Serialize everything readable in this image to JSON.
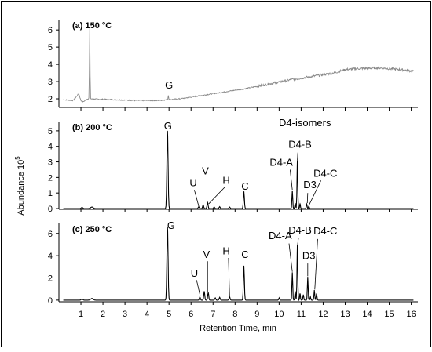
{
  "chart_data": {
    "type": "line",
    "ylabel": "Abundance 10",
    "ylabel_exponent": "5",
    "xlabel": "Retention Time, min",
    "xlim": [
      0,
      16.3
    ],
    "x_ticks": [
      "1",
      "2",
      "3",
      "4",
      "5",
      "6",
      "7",
      "8",
      "9",
      "10",
      "11",
      "12",
      "13",
      "14",
      "15",
      "16"
    ],
    "panels": [
      {
        "title": "(a) 150 °C",
        "ylim": [
          1.5,
          6.6
        ],
        "y_ticks": [
          "2",
          "3",
          "4",
          "5",
          "6"
        ],
        "line_color": "#888888",
        "peak_labels": [
          {
            "text": "G",
            "x": 5.0,
            "y": 2.6
          }
        ],
        "baseline": [
          [
            0.2,
            1.95
          ],
          [
            0.65,
            1.9
          ],
          [
            0.9,
            2.3
          ],
          [
            1.0,
            1.9
          ],
          [
            1.1,
            1.82
          ],
          [
            1.3,
            2.0
          ],
          [
            1.7,
            1.98
          ],
          [
            2.5,
            1.95
          ],
          [
            3.5,
            1.9
          ],
          [
            4.5,
            1.9
          ],
          [
            5.5,
            2.0
          ],
          [
            6.5,
            2.2
          ],
          [
            7.5,
            2.4
          ],
          [
            8.5,
            2.6
          ],
          [
            9.5,
            2.85
          ],
          [
            10.5,
            3.1
          ],
          [
            11.5,
            3.3
          ],
          [
            12.5,
            3.5
          ],
          [
            13.0,
            3.7
          ],
          [
            13.5,
            3.75
          ],
          [
            14.5,
            3.8
          ],
          [
            15.5,
            3.7
          ],
          [
            16.1,
            3.6
          ]
        ],
        "spikes": [
          {
            "x": 1.4,
            "height": 4.1,
            "width": 0.03
          },
          {
            "x": 4.97,
            "height": 0.25,
            "width": 0.03
          }
        ]
      },
      {
        "title": "(b) 200 °C",
        "ylim": [
          -0.05,
          5.6
        ],
        "y_ticks": [
          "0",
          "1",
          "2",
          "3",
          "4",
          "5"
        ],
        "line_color": "#000000",
        "header_text": "D4-isomers",
        "peak_labels": [
          {
            "text": "G",
            "x": 4.95,
            "y": 5.1
          },
          {
            "text": "U",
            "x": 6.1,
            "y": 1.45
          },
          {
            "text": "V",
            "x": 6.65,
            "y": 2.2
          },
          {
            "text": "H",
            "x": 7.6,
            "y": 1.6
          },
          {
            "text": "C",
            "x": 8.45,
            "y": 1.2
          },
          {
            "text": "D4-A",
            "x": 10.1,
            "y": 2.75
          },
          {
            "text": "D4-B",
            "x": 10.95,
            "y": 3.9
          },
          {
            "text": "D3",
            "x": 11.4,
            "y": 1.3
          },
          {
            "text": "D4-C",
            "x": 12.1,
            "y": 2.05
          }
        ],
        "baseline": [
          [
            0.2,
            0.0
          ],
          [
            16.1,
            0.0
          ]
        ],
        "spikes": [
          {
            "x": 1.05,
            "height": 0.07,
            "width": 0.08
          },
          {
            "x": 1.5,
            "height": 0.1,
            "width": 0.12
          },
          {
            "x": 4.93,
            "height": 5.0,
            "width": 0.06
          },
          {
            "x": 6.35,
            "height": 0.12,
            "width": 0.05
          },
          {
            "x": 6.55,
            "height": 0.25,
            "width": 0.05
          },
          {
            "x": 6.75,
            "height": 0.4,
            "width": 0.05
          },
          {
            "x": 7.05,
            "height": 0.1,
            "width": 0.05
          },
          {
            "x": 7.3,
            "height": 0.12,
            "width": 0.05
          },
          {
            "x": 7.75,
            "height": 0.1,
            "width": 0.05
          },
          {
            "x": 8.4,
            "height": 1.1,
            "width": 0.05
          },
          {
            "x": 10.6,
            "height": 1.15,
            "width": 0.04
          },
          {
            "x": 10.73,
            "height": 0.35,
            "width": 0.04
          },
          {
            "x": 10.83,
            "height": 3.1,
            "width": 0.04
          },
          {
            "x": 10.95,
            "height": 0.3,
            "width": 0.04
          },
          {
            "x": 11.25,
            "height": 0.3,
            "width": 0.04
          },
          {
            "x": 11.35,
            "height": 0.15,
            "width": 0.04
          }
        ]
      },
      {
        "title": "(c) 250 °C",
        "ylim": [
          -0.15,
          6.9
        ],
        "y_ticks": [
          "0",
          "2",
          "4",
          "6"
        ],
        "line_color": "#000000",
        "peak_labels": [
          {
            "text": "G",
            "x": 5.1,
            "y": 6.4
          },
          {
            "text": "U",
            "x": 6.15,
            "y": 2.1
          },
          {
            "text": "V",
            "x": 6.7,
            "y": 3.8
          },
          {
            "text": "H",
            "x": 7.6,
            "y": 4.1
          },
          {
            "text": "C",
            "x": 8.45,
            "y": 3.8
          },
          {
            "text": "D4-A",
            "x": 10.05,
            "y": 5.5
          },
          {
            "text": "D4-B",
            "x": 10.95,
            "y": 6.0
          },
          {
            "text": "D3",
            "x": 11.35,
            "y": 3.7
          },
          {
            "text": "D4-C",
            "x": 12.1,
            "y": 5.9
          }
        ],
        "baseline": [
          [
            0.2,
            0.0
          ],
          [
            16.1,
            0.0
          ]
        ],
        "spikes": [
          {
            "x": 1.05,
            "height": 0.1,
            "width": 0.08
          },
          {
            "x": 1.5,
            "height": 0.15,
            "width": 0.12
          },
          {
            "x": 4.93,
            "height": 6.6,
            "width": 0.06
          },
          {
            "x": 6.4,
            "height": 0.3,
            "width": 0.05
          },
          {
            "x": 6.6,
            "height": 0.8,
            "width": 0.05
          },
          {
            "x": 6.78,
            "height": 0.7,
            "width": 0.05
          },
          {
            "x": 7.1,
            "height": 0.2,
            "width": 0.05
          },
          {
            "x": 7.3,
            "height": 0.25,
            "width": 0.05
          },
          {
            "x": 7.75,
            "height": 0.3,
            "width": 0.05
          },
          {
            "x": 8.4,
            "height": 3.1,
            "width": 0.05
          },
          {
            "x": 10.0,
            "height": 0.2,
            "width": 0.04
          },
          {
            "x": 10.6,
            "height": 2.5,
            "width": 0.04
          },
          {
            "x": 10.73,
            "height": 0.8,
            "width": 0.04
          },
          {
            "x": 10.83,
            "height": 5.0,
            "width": 0.04
          },
          {
            "x": 10.95,
            "height": 0.6,
            "width": 0.04
          },
          {
            "x": 11.1,
            "height": 0.5,
            "width": 0.04
          },
          {
            "x": 11.3,
            "height": 2.1,
            "width": 0.04
          },
          {
            "x": 11.42,
            "height": 0.3,
            "width": 0.04
          },
          {
            "x": 11.6,
            "height": 0.9,
            "width": 0.04
          },
          {
            "x": 11.7,
            "height": 0.6,
            "width": 0.04
          }
        ]
      }
    ]
  }
}
